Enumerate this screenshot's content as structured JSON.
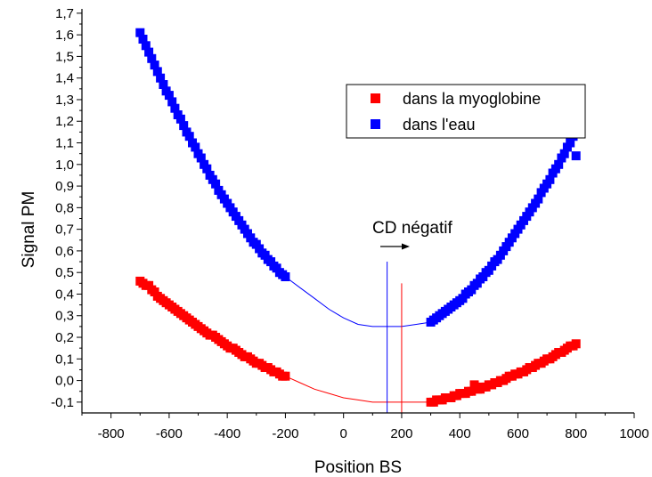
{
  "chart_data": {
    "type": "scatter",
    "xlabel": "Position BS",
    "ylabel": "Signal PM",
    "xlim": [
      -900,
      1000
    ],
    "ylim": [
      -0.15,
      1.72
    ],
    "x_ticks": [
      "-800",
      "-600",
      "-400",
      "-200",
      "0",
      "200",
      "400",
      "600",
      "800",
      "1000"
    ],
    "y_ticks": [
      "-0,1",
      "0,0",
      "0,1",
      "0,2",
      "0,3",
      "0,4",
      "0,5",
      "0,6",
      "0,7",
      "0,8",
      "0,9",
      "1,0",
      "1,1",
      "1,2",
      "1,3",
      "1,4",
      "1,5",
      "1,6",
      "1,7"
    ],
    "legend_position": "top-right",
    "annotation": "CD négatif",
    "vertical_lines": [
      {
        "x": 150,
        "color": "#0000ff",
        "y_top": 0.55
      },
      {
        "x": 200,
        "color": "#ff0000",
        "y_top": 0.45
      }
    ],
    "series": [
      {
        "name": "dans la myoglobine",
        "color": "#ff0000",
        "points": [
          [
            -700,
            0.46
          ],
          [
            -690,
            0.45
          ],
          [
            -680,
            0.44
          ],
          [
            -670,
            0.44
          ],
          [
            -660,
            0.42
          ],
          [
            -650,
            0.41
          ],
          [
            -640,
            0.39
          ],
          [
            -630,
            0.38
          ],
          [
            -620,
            0.37
          ],
          [
            -610,
            0.36
          ],
          [
            -600,
            0.35
          ],
          [
            -590,
            0.34
          ],
          [
            -580,
            0.33
          ],
          [
            -570,
            0.32
          ],
          [
            -560,
            0.31
          ],
          [
            -550,
            0.3
          ],
          [
            -540,
            0.29
          ],
          [
            -530,
            0.28
          ],
          [
            -520,
            0.27
          ],
          [
            -510,
            0.26
          ],
          [
            -500,
            0.25
          ],
          [
            -490,
            0.24
          ],
          [
            -480,
            0.23
          ],
          [
            -470,
            0.22
          ],
          [
            -460,
            0.21
          ],
          [
            -450,
            0.21
          ],
          [
            -440,
            0.2
          ],
          [
            -430,
            0.19
          ],
          [
            -420,
            0.18
          ],
          [
            -410,
            0.17
          ],
          [
            -400,
            0.16
          ],
          [
            -390,
            0.15
          ],
          [
            -380,
            0.15
          ],
          [
            -370,
            0.14
          ],
          [
            -360,
            0.13
          ],
          [
            -350,
            0.12
          ],
          [
            -340,
            0.11
          ],
          [
            -330,
            0.11
          ],
          [
            -320,
            0.1
          ],
          [
            -310,
            0.09
          ],
          [
            -300,
            0.08
          ],
          [
            -290,
            0.08
          ],
          [
            -280,
            0.07
          ],
          [
            -270,
            0.06
          ],
          [
            -260,
            0.06
          ],
          [
            -250,
            0.05
          ],
          [
            -240,
            0.04
          ],
          [
            -230,
            0.04
          ],
          [
            -220,
            0.03
          ],
          [
            -210,
            0.02
          ],
          [
            -200,
            0.02
          ],
          [
            300,
            -0.1
          ],
          [
            310,
            -0.1
          ],
          [
            320,
            -0.09
          ],
          [
            330,
            -0.09
          ],
          [
            340,
            -0.09
          ],
          [
            350,
            -0.08
          ],
          [
            360,
            -0.08
          ],
          [
            370,
            -0.08
          ],
          [
            380,
            -0.07
          ],
          [
            390,
            -0.07
          ],
          [
            400,
            -0.06
          ],
          [
            410,
            -0.06
          ],
          [
            420,
            -0.06
          ],
          [
            430,
            -0.05
          ],
          [
            440,
            -0.05
          ],
          [
            450,
            -0.02
          ],
          [
            460,
            -0.04
          ],
          [
            470,
            -0.04
          ],
          [
            480,
            -0.03
          ],
          [
            490,
            -0.03
          ],
          [
            500,
            -0.02
          ],
          [
            510,
            -0.02
          ],
          [
            520,
            -0.01
          ],
          [
            530,
            -0.01
          ],
          [
            540,
            0.0
          ],
          [
            550,
            0.0
          ],
          [
            560,
            0.01
          ],
          [
            570,
            0.02
          ],
          [
            580,
            0.02
          ],
          [
            590,
            0.03
          ],
          [
            600,
            0.03
          ],
          [
            610,
            0.04
          ],
          [
            620,
            0.04
          ],
          [
            630,
            0.05
          ],
          [
            640,
            0.06
          ],
          [
            650,
            0.06
          ],
          [
            660,
            0.07
          ],
          [
            670,
            0.08
          ],
          [
            680,
            0.08
          ],
          [
            690,
            0.09
          ],
          [
            700,
            0.1
          ],
          [
            710,
            0.1
          ],
          [
            720,
            0.11
          ],
          [
            730,
            0.12
          ],
          [
            740,
            0.13
          ],
          [
            750,
            0.13
          ],
          [
            760,
            0.14
          ],
          [
            770,
            0.15
          ],
          [
            780,
            0.16
          ],
          [
            790,
            0.16
          ],
          [
            800,
            0.17
          ]
        ]
      },
      {
        "name": "dans l'eau",
        "color": "#0000ff",
        "points": [
          [
            -700,
            1.61
          ],
          [
            -690,
            1.58
          ],
          [
            -680,
            1.55
          ],
          [
            -670,
            1.52
          ],
          [
            -660,
            1.49
          ],
          [
            -650,
            1.46
          ],
          [
            -640,
            1.43
          ],
          [
            -630,
            1.4
          ],
          [
            -620,
            1.37
          ],
          [
            -610,
            1.34
          ],
          [
            -600,
            1.32
          ],
          [
            -590,
            1.29
          ],
          [
            -580,
            1.26
          ],
          [
            -570,
            1.23
          ],
          [
            -560,
            1.21
          ],
          [
            -550,
            1.18
          ],
          [
            -540,
            1.15
          ],
          [
            -530,
            1.13
          ],
          [
            -520,
            1.1
          ],
          [
            -510,
            1.08
          ],
          [
            -500,
            1.05
          ],
          [
            -490,
            1.03
          ],
          [
            -480,
            1.0
          ],
          [
            -470,
            0.98
          ],
          [
            -460,
            0.95
          ],
          [
            -450,
            0.93
          ],
          [
            -440,
            0.91
          ],
          [
            -430,
            0.88
          ],
          [
            -420,
            0.86
          ],
          [
            -410,
            0.84
          ],
          [
            -400,
            0.82
          ],
          [
            -390,
            0.8
          ],
          [
            -380,
            0.78
          ],
          [
            -370,
            0.76
          ],
          [
            -360,
            0.74
          ],
          [
            -350,
            0.72
          ],
          [
            -340,
            0.7
          ],
          [
            -330,
            0.68
          ],
          [
            -320,
            0.66
          ],
          [
            -310,
            0.64
          ],
          [
            -300,
            0.63
          ],
          [
            -290,
            0.61
          ],
          [
            -280,
            0.59
          ],
          [
            -270,
            0.58
          ],
          [
            -260,
            0.56
          ],
          [
            -250,
            0.55
          ],
          [
            -240,
            0.53
          ],
          [
            -230,
            0.52
          ],
          [
            -220,
            0.5
          ],
          [
            -210,
            0.49
          ],
          [
            -200,
            0.48
          ],
          [
            300,
            0.27
          ],
          [
            310,
            0.28
          ],
          [
            320,
            0.29
          ],
          [
            330,
            0.3
          ],
          [
            340,
            0.31
          ],
          [
            350,
            0.32
          ],
          [
            360,
            0.33
          ],
          [
            370,
            0.34
          ],
          [
            380,
            0.35
          ],
          [
            390,
            0.36
          ],
          [
            400,
            0.37
          ],
          [
            410,
            0.38
          ],
          [
            420,
            0.4
          ],
          [
            430,
            0.41
          ],
          [
            440,
            0.42
          ],
          [
            450,
            0.44
          ],
          [
            460,
            0.45
          ],
          [
            470,
            0.47
          ],
          [
            480,
            0.48
          ],
          [
            490,
            0.5
          ],
          [
            500,
            0.51
          ],
          [
            510,
            0.53
          ],
          [
            520,
            0.55
          ],
          [
            530,
            0.56
          ],
          [
            540,
            0.58
          ],
          [
            550,
            0.6
          ],
          [
            560,
            0.62
          ],
          [
            570,
            0.64
          ],
          [
            580,
            0.66
          ],
          [
            590,
            0.68
          ],
          [
            600,
            0.7
          ],
          [
            610,
            0.72
          ],
          [
            620,
            0.74
          ],
          [
            630,
            0.76
          ],
          [
            640,
            0.78
          ],
          [
            650,
            0.8
          ],
          [
            660,
            0.82
          ],
          [
            670,
            0.84
          ],
          [
            680,
            0.87
          ],
          [
            690,
            0.89
          ],
          [
            700,
            0.91
          ],
          [
            710,
            0.93
          ],
          [
            720,
            0.96
          ],
          [
            730,
            0.98
          ],
          [
            740,
            1.0
          ],
          [
            750,
            1.03
          ],
          [
            760,
            1.05
          ],
          [
            770,
            1.08
          ],
          [
            780,
            1.1
          ],
          [
            790,
            1.13
          ],
          [
            800,
            1.04
          ]
        ]
      }
    ],
    "fit_curves": [
      {
        "series": "dans l'eau",
        "color": "#0000ff",
        "x": [
          -200,
          -150,
          -100,
          -50,
          0,
          50,
          100,
          150,
          200,
          250,
          300
        ],
        "y": [
          0.48,
          0.43,
          0.38,
          0.33,
          0.29,
          0.26,
          0.25,
          0.25,
          0.25,
          0.26,
          0.27
        ]
      },
      {
        "series": "dans la myoglobine",
        "color": "#ff0000",
        "x": [
          -200,
          -150,
          -100,
          -50,
          0,
          50,
          100,
          150,
          200,
          250,
          300
        ],
        "y": [
          0.02,
          -0.01,
          -0.04,
          -0.06,
          -0.08,
          -0.09,
          -0.1,
          -0.1,
          -0.1,
          -0.1,
          -0.1
        ]
      }
    ]
  }
}
